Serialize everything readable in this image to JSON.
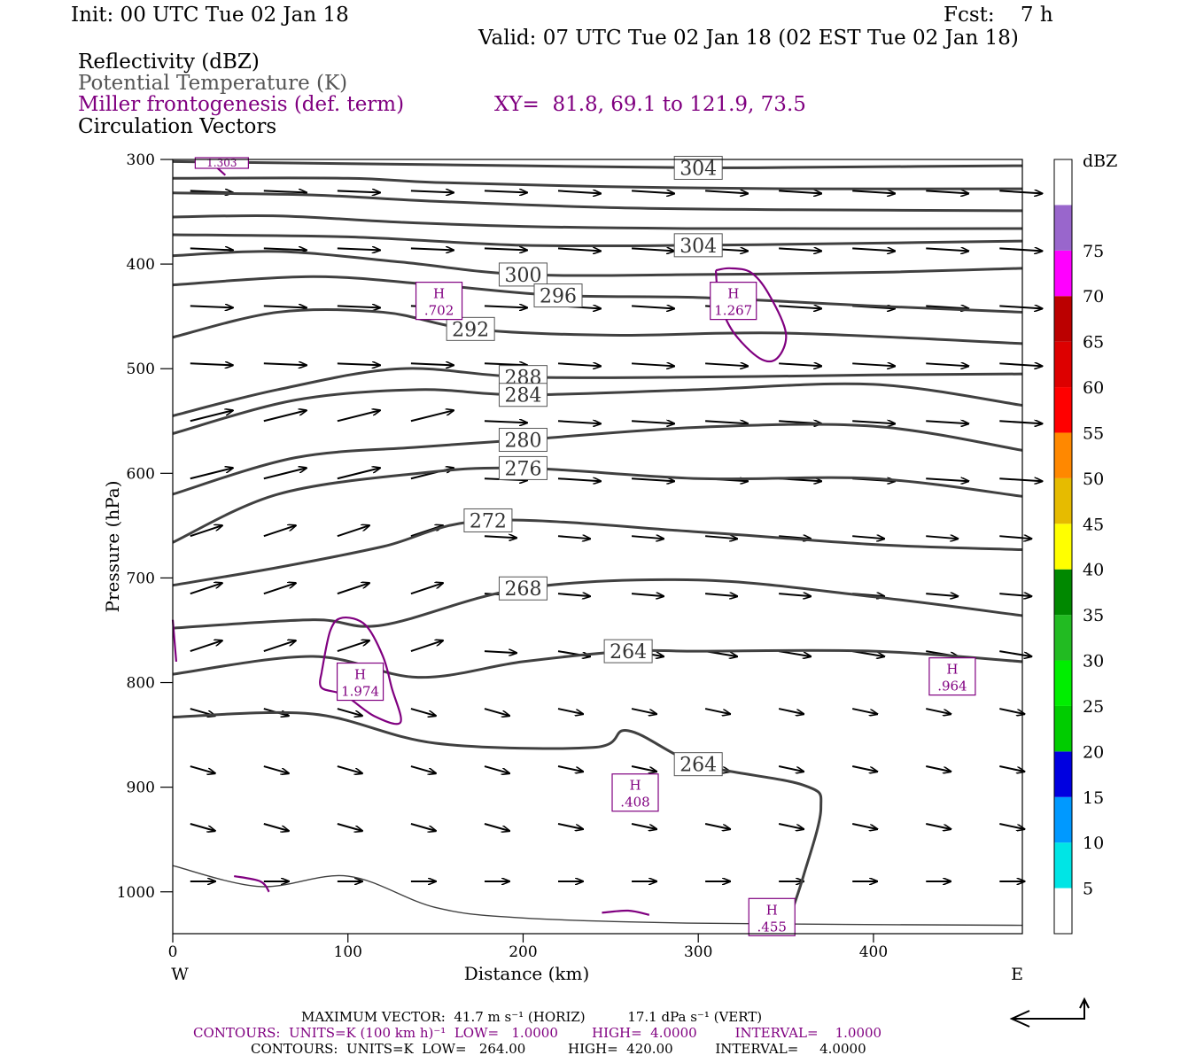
{
  "header": {
    "init": "Init: 00 UTC Tue 02 Jan 18",
    "fcst": "Fcst:    7 h",
    "valid": "Valid: 07 UTC Tue 02 Jan 18 (02 EST Tue 02 Jan 18)",
    "field1": "Reflectivity (dBZ)",
    "field2": "Potential Temperature (K)",
    "field3": "Miller frontogenesis (def. term)",
    "field4": "Circulation Vectors",
    "xy": "XY=  81.8, 69.1 to 121.9, 73.5"
  },
  "colors": {
    "theta": "#404040",
    "frontogenesis": "#800080",
    "vectors": "#000000"
  },
  "chart_data": {
    "type": "line",
    "xlabel": "Distance (km)",
    "ylabel": "Pressure (hPa)",
    "xlim": [
      0,
      485
    ],
    "ylim": [
      1040,
      300
    ],
    "y_scale": "linear, inverted",
    "x_ticks": [
      "0",
      "100",
      "200",
      "300",
      "400"
    ],
    "y_ticks": [
      "300",
      "400",
      "500",
      "600",
      "700",
      "800",
      "900",
      "1000"
    ],
    "x_left_label": "W",
    "x_right_label": "E",
    "colorbar": {
      "title": "dBZ",
      "levels": [
        "5",
        "10",
        "15",
        "20",
        "25",
        "30",
        "35",
        "40",
        "45",
        "50",
        "55",
        "60",
        "65",
        "70",
        "75"
      ],
      "colors": [
        "#ffffff",
        "#00e5e5",
        "#0099ff",
        "#0000e0",
        "#00cc00",
        "#00ee00",
        "#22bb22",
        "#008800",
        "#ffff00",
        "#e6bb00",
        "#ff8800",
        "#ff0000",
        "#dd0000",
        "#bb0000",
        "#ff00ff",
        "#9966cc",
        "#ffffff"
      ]
    },
    "theta_contours": [
      {
        "label": "304",
        "points": [
          [
            0,
            302
          ],
          [
            100,
            304
          ],
          [
            200,
            306
          ],
          [
            300,
            308
          ],
          [
            400,
            307
          ],
          [
            485,
            306
          ]
        ]
      },
      {
        "label": "",
        "points": [
          [
            0,
            318
          ],
          [
            100,
            318
          ],
          [
            150,
            322
          ],
          [
            250,
            326
          ],
          [
            350,
            328
          ],
          [
            485,
            328
          ]
        ]
      },
      {
        "label": "",
        "points": [
          [
            0,
            332
          ],
          [
            80,
            334
          ],
          [
            150,
            340
          ],
          [
            250,
            346
          ],
          [
            350,
            348
          ],
          [
            485,
            349
          ]
        ]
      },
      {
        "label": "",
        "points": [
          [
            0,
            355
          ],
          [
            60,
            354
          ],
          [
            130,
            360
          ],
          [
            200,
            364
          ],
          [
            300,
            366
          ],
          [
            485,
            366
          ]
        ]
      },
      {
        "label": "304",
        "points": [
          [
            0,
            372
          ],
          [
            100,
            374
          ],
          [
            200,
            382
          ],
          [
            300,
            382
          ],
          [
            400,
            380
          ],
          [
            485,
            378
          ]
        ]
      },
      {
        "label": "300",
        "points": [
          [
            0,
            392
          ],
          [
            60,
            388
          ],
          [
            130,
            398
          ],
          [
            200,
            410
          ],
          [
            300,
            410
          ],
          [
            400,
            408
          ],
          [
            485,
            404
          ]
        ]
      },
      {
        "label": "296",
        "points": [
          [
            0,
            420
          ],
          [
            80,
            412
          ],
          [
            150,
            420
          ],
          [
            220,
            430
          ],
          [
            300,
            432
          ],
          [
            400,
            440
          ],
          [
            485,
            446
          ]
        ]
      },
      {
        "label": "292",
        "points": [
          [
            0,
            470
          ],
          [
            60,
            446
          ],
          [
            120,
            446
          ],
          [
            170,
            462
          ],
          [
            250,
            468
          ],
          [
            350,
            466
          ],
          [
            485,
            476
          ]
        ]
      },
      {
        "label": "288",
        "points": [
          [
            0,
            545
          ],
          [
            60,
            520
          ],
          [
            130,
            500
          ],
          [
            200,
            508
          ],
          [
            300,
            508
          ],
          [
            400,
            506
          ],
          [
            485,
            505
          ]
        ]
      },
      {
        "label": "284",
        "points": [
          [
            0,
            562
          ],
          [
            70,
            530
          ],
          [
            140,
            520
          ],
          [
            200,
            525
          ],
          [
            300,
            520
          ],
          [
            400,
            515
          ],
          [
            485,
            535
          ]
        ]
      },
      {
        "label": "280",
        "points": [
          [
            0,
            620
          ],
          [
            70,
            585
          ],
          [
            140,
            575
          ],
          [
            200,
            568
          ],
          [
            300,
            556
          ],
          [
            400,
            555
          ],
          [
            485,
            578
          ]
        ]
      },
      {
        "label": "276",
        "points": [
          [
            0,
            666
          ],
          [
            60,
            620
          ],
          [
            140,
            600
          ],
          [
            200,
            595
          ],
          [
            300,
            605
          ],
          [
            400,
            605
          ],
          [
            485,
            622
          ]
        ]
      },
      {
        "label": "272",
        "points": [
          [
            0,
            707
          ],
          [
            60,
            690
          ],
          [
            120,
            670
          ],
          [
            180,
            645
          ],
          [
            300,
            656
          ],
          [
            400,
            668
          ],
          [
            485,
            673
          ]
        ]
      },
      {
        "label": "268",
        "points": [
          [
            0,
            748
          ],
          [
            80,
            740
          ],
          [
            120,
            745
          ],
          [
            200,
            710
          ],
          [
            300,
            702
          ],
          [
            400,
            718
          ],
          [
            485,
            736
          ]
        ]
      },
      {
        "label": "264",
        "points": [
          [
            0,
            792
          ],
          [
            80,
            775
          ],
          [
            140,
            795
          ],
          [
            200,
            780
          ],
          [
            260,
            770
          ],
          [
            300,
            770
          ],
          [
            400,
            770
          ],
          [
            485,
            780
          ]
        ]
      },
      {
        "label": "264",
        "points": [
          [
            0,
            833
          ],
          [
            80,
            830
          ],
          [
            150,
            858
          ],
          [
            240,
            862
          ],
          [
            260,
            846
          ],
          [
            300,
            878
          ],
          [
            360,
            898
          ],
          [
            370,
            920
          ],
          [
            360,
            985
          ],
          [
            350,
            1035
          ]
        ]
      },
      {
        "label": "",
        "points": [
          [
            0,
            975
          ],
          [
            50,
            995
          ],
          [
            100,
            985
          ],
          [
            150,
            1015
          ],
          [
            200,
            1025
          ],
          [
            300,
            1030
          ],
          [
            485,
            1032
          ]
        ]
      }
    ],
    "frontogenesis_maxima": [
      {
        "label": "H",
        "value": ".702",
        "x": 152,
        "p": 436
      },
      {
        "label": "H",
        "value": "1.267",
        "x": 320,
        "p": 436
      },
      {
        "label": "H",
        "value": "1.974",
        "x": 107,
        "p": 800
      },
      {
        "label": "H",
        "value": ".964",
        "x": 445,
        "p": 795
      },
      {
        "label": "H",
        "value": ".408",
        "x": 264,
        "p": 906
      },
      {
        "label": "H",
        "value": ".455",
        "x": 342,
        "p": 1025
      },
      {
        "label": "",
        "value": "1.303",
        "x": 28,
        "p": 303
      }
    ],
    "frontogenesis_contours": [
      {
        "points": [
          [
            310,
            406
          ],
          [
            318,
            404
          ],
          [
            330,
            408
          ],
          [
            340,
            428
          ],
          [
            350,
            466
          ],
          [
            345,
            490
          ],
          [
            335,
            490
          ],
          [
            320,
            465
          ],
          [
            312,
            435
          ],
          [
            310,
            406
          ]
        ]
      },
      {
        "points": [
          [
            85,
            790
          ],
          [
            90,
            750
          ],
          [
            97,
            738
          ],
          [
            110,
            745
          ],
          [
            120,
            775
          ],
          [
            125,
            805
          ],
          [
            130,
            838
          ],
          [
            115,
            832
          ],
          [
            98,
            812
          ],
          [
            85,
            805
          ],
          [
            85,
            790
          ]
        ]
      },
      {
        "points": [
          [
            20,
            300
          ],
          [
            30,
            315
          ]
        ]
      },
      {
        "points": [
          [
            0,
            740
          ],
          [
            2,
            780
          ]
        ]
      },
      {
        "points": [
          [
            35,
            985
          ],
          [
            50,
            990
          ],
          [
            55,
            1000
          ]
        ]
      },
      {
        "points": [
          [
            245,
            1020
          ],
          [
            260,
            1018
          ],
          [
            272,
            1022
          ]
        ]
      }
    ]
  },
  "footer": {
    "max_vector": "MAXIMUM VECTOR:  41.7 m s⁻¹ (HORIZ)          17.1 dPa s⁻¹ (VERT)",
    "contours1": "CONTOURS:  UNITS=K (100 km h)⁻¹  LOW=   1.0000        HIGH=  4.0000         INTERVAL=    1.0000",
    "contours2": "CONTOURS:  UNITS=K  LOW=   264.00          HIGH=  420.00          INTERVAL=     4.0000"
  }
}
